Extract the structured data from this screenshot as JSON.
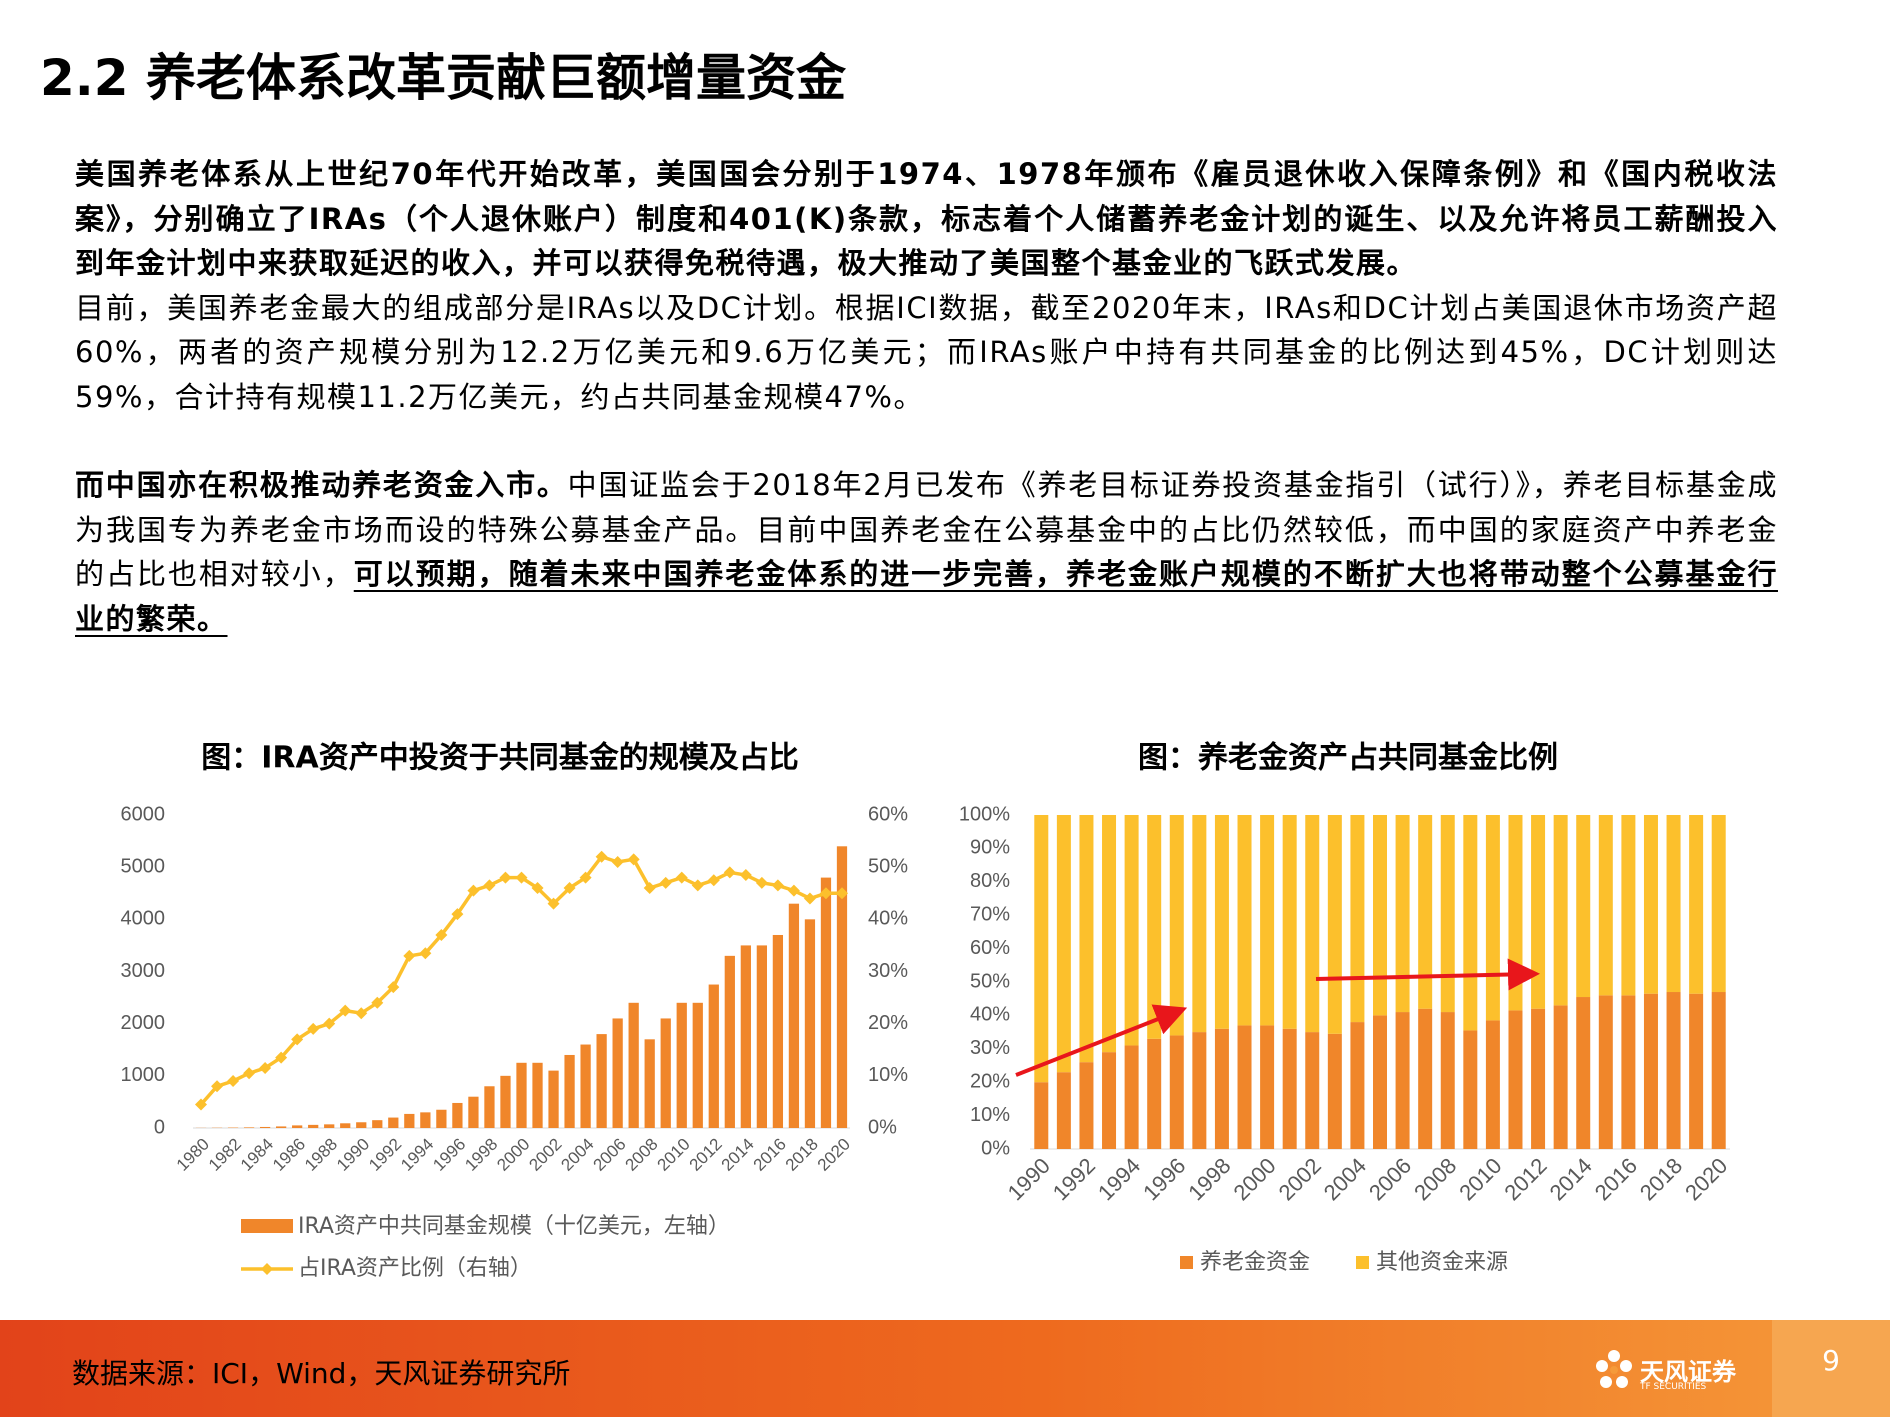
{
  "title": "2.2 养老体系改革贡献巨额增量资金",
  "paragraphs": [
    [
      {
        "text": "美国养老体系从上世纪70年代开始改革，美国国会分别于1974、1978年颁布《雇员退休收入保障条例》和《国内税收法案》，分别确立了IRAs（个人退休账户）制度和401(K)条款，标志着个人储蓄养老金计划的诞生、以及允许将员工薪酬投入到年金计划中来获取延迟的收入，并可以获得免税待遇，极大推动了美国整个基金业的飞跃式发展。",
        "bold": true,
        "underline": false
      }
    ],
    [
      {
        "text": "目前，美国养老金最大的组成部分是IRAs以及DC计划。根据ICI数据，截至2020年末，IRAs和DC计划占美国退休市场资产超60%，两者的资产规模分别为12.2万亿美元和9.6万亿美元；而IRAs账户中持有共同基金的比例达到45%，DC计划则达59%，合计持有规模11.2万亿美元，约占共同基金规模47%。",
        "bold": false,
        "underline": false
      }
    ],
    [
      {
        "text": "而中国亦在积极推动养老资金入市。",
        "bold": true,
        "underline": false
      },
      {
        "text": "中国证监会于2018年2月已发布《养老目标证券投资基金指引（试行）》，养老目标基金成为我国专为养老金市场而设的特殊公募基金产品。目前中国养老金在公募基金中的占比仍然较低，而中国的家庭资产中养老金的占比也相对较小，",
        "bold": false,
        "underline": false
      },
      {
        "text": "可以预期，随着未来中国养老金体系的进一步完善，养老金账户规模的不断扩大也将带动整个公募基金行业的繁荣。",
        "bold": true,
        "underline": true
      }
    ]
  ],
  "chart_data": [
    {
      "type": "bar-line",
      "title": "图：IRA资产中投资于共同基金的规模及占比",
      "categories": [
        "1980",
        null,
        "1982",
        null,
        "1984",
        null,
        "1986",
        null,
        "1988",
        null,
        "1990",
        null,
        "1992",
        null,
        "1994",
        null,
        "1996",
        null,
        "1998",
        null,
        "2000",
        null,
        "2002",
        null,
        "2004",
        null,
        "2006",
        null,
        "2008",
        null,
        "2010",
        null,
        "2012",
        null,
        "2014",
        null,
        "2016",
        null,
        "2018",
        null,
        "2020"
      ],
      "series": [
        {
          "name": "IRA资产中共同基金规模（十亿美元，左轴）",
          "color": "#f0862a",
          "type": "bar",
          "values": [
            3,
            5,
            8,
            12,
            20,
            30,
            50,
            60,
            70,
            90,
            110,
            150,
            200,
            270,
            300,
            350,
            480,
            600,
            800,
            1000,
            1250,
            1250,
            1100,
            1400,
            1600,
            1800,
            2100,
            2400,
            1700,
            2100,
            2400,
            2400,
            2750,
            3300,
            3500,
            3500,
            3700,
            4300,
            4000,
            4800,
            5400
          ]
        },
        {
          "name": "占IRA资产比例（右轴）",
          "color": "#fcc02c",
          "type": "line",
          "axis": "y2",
          "values": [
            4.5,
            8,
            9,
            10.5,
            11.5,
            13.5,
            17,
            19,
            20,
            22.5,
            22,
            24,
            27,
            33,
            33.5,
            37,
            41,
            45.5,
            46.5,
            48,
            48,
            46,
            43,
            46,
            48,
            52,
            51,
            51.5,
            46,
            47,
            48,
            46.5,
            47.5,
            49,
            48.5,
            47,
            46.5,
            45.5,
            44,
            45,
            45
          ]
        }
      ],
      "ylim": [
        0,
        6000
      ],
      "yticks": [
        0,
        1000,
        2000,
        3000,
        4000,
        5000,
        6000
      ],
      "y2lim": [
        0,
        60
      ],
      "y2ticks": [
        {
          "value": 0,
          "label": "0%"
        },
        {
          "value": 10,
          "label": "10%"
        },
        {
          "value": 20,
          "label": "20%"
        },
        {
          "value": 30,
          "label": "30%"
        },
        {
          "value": 40,
          "label": "40%"
        },
        {
          "value": 50,
          "label": "50%"
        },
        {
          "value": 60,
          "label": "60%"
        }
      ],
      "grid": false
    },
    {
      "type": "stacked-bar",
      "title": "图：养老金资产占共同基金比例",
      "categories": [
        "1990",
        null,
        "1992",
        null,
        "1994",
        null,
        "1996",
        null,
        "1998",
        null,
        "2000",
        null,
        "2002",
        null,
        "2004",
        null,
        "2006",
        null,
        "2008",
        null,
        "2010",
        null,
        "2012",
        null,
        "2014",
        null,
        "2016",
        null,
        "2018",
        null,
        "2020"
      ],
      "series": [
        {
          "name": "养老金资金",
          "color": "#f0862a",
          "values": [
            20,
            23,
            26,
            29,
            31,
            33,
            34,
            35,
            36,
            37,
            37,
            36,
            35,
            34.5,
            38,
            40,
            41,
            42,
            41,
            35.5,
            38.5,
            41.5,
            42,
            43,
            45.5,
            46,
            46,
            46.5,
            47,
            46.5,
            47
          ]
        },
        {
          "name": "其他资金来源",
          "color": "#fcc02c",
          "values": [
            80,
            77,
            74,
            71,
            69,
            67,
            66,
            65,
            64,
            63,
            63,
            64,
            65,
            65.5,
            62,
            60,
            59,
            58,
            59,
            64.5,
            61.5,
            58.5,
            58,
            57,
            54.5,
            54,
            54,
            53.5,
            53,
            53.5,
            53
          ]
        }
      ],
      "ylim": [
        0,
        100
      ],
      "yticks": [
        {
          "value": 0,
          "label": "0%"
        },
        {
          "value": 10,
          "label": "10%"
        },
        {
          "value": 20,
          "label": "20%"
        },
        {
          "value": 30,
          "label": "30%"
        },
        {
          "value": 40,
          "label": "40%"
        },
        {
          "value": 50,
          "label": "50%"
        },
        {
          "value": 60,
          "label": "60%"
        },
        {
          "value": 70,
          "label": "70%"
        },
        {
          "value": 80,
          "label": "80%"
        },
        {
          "value": 90,
          "label": "90%"
        },
        {
          "value": 100,
          "label": "100%"
        }
      ],
      "grid": false
    }
  ],
  "footer": {
    "source": "数据来源：ICI，Wind，天风证券研究所",
    "page": "9",
    "logo": "天风证券",
    "logo_sub": "TF SECURITIES"
  }
}
